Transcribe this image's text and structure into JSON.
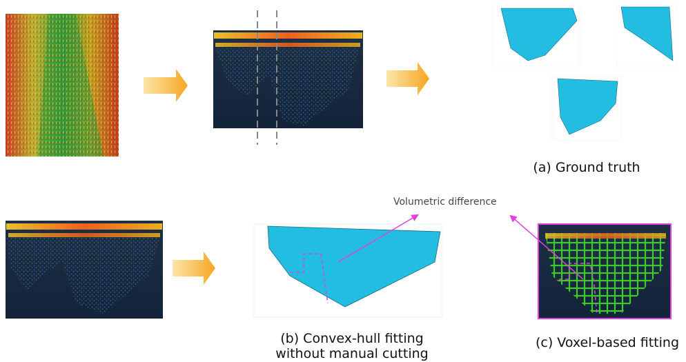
{
  "captions": {
    "ground_truth": "(a) Ground truth",
    "convex_hull": [
      "(b) Convex-hull fitting",
      "without manual cutting"
    ],
    "voxel": "(c) Voxel-based fitting"
  },
  "annotation": "Volumetric difference"
}
